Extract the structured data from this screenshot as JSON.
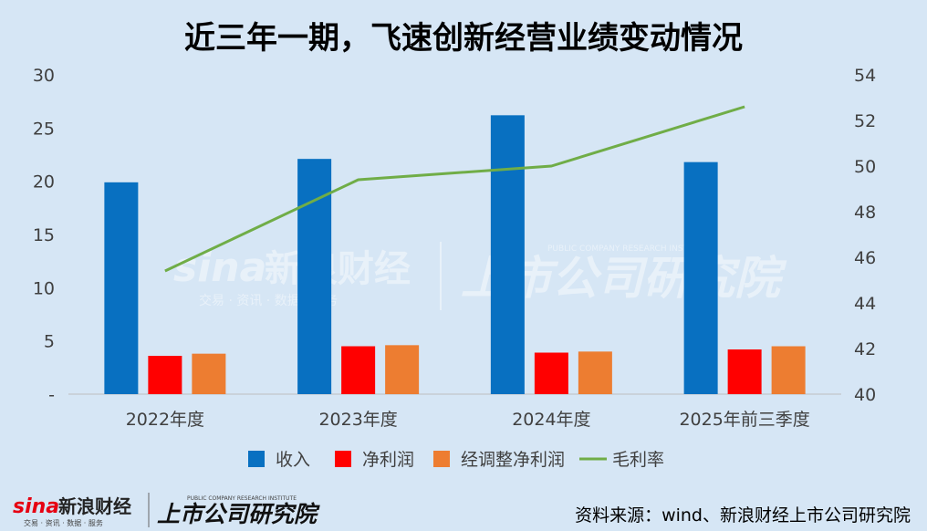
{
  "title": "近三年一期，飞速创新经营业绩变动情况",
  "source": "资料来源：wind、新浪财经上市公司研究院",
  "brand": {
    "sina_latin": "sina",
    "sina_cn": "新浪财经",
    "sina_sub": "交易 · 资讯 · 数据 · 服务",
    "institute_cn": "上市公司研究院",
    "institute_en": "PUBLIC COMPANY RESEARCH INSTITUTE"
  },
  "colors": {
    "background": "#d6e6f5",
    "revenue": "#0870c1",
    "net_profit": "#ff0000",
    "adj_net_profit": "#ed7d31",
    "gross_margin": "#70ad47"
  },
  "chart_data": {
    "type": "bar",
    "title": "近三年一期，飞速创新经营业绩变动情况",
    "categories": [
      "2022年度",
      "2023年度",
      "2024年度",
      "2025年前三季度"
    ],
    "series": [
      {
        "name": "收入",
        "axis": "left",
        "kind": "bar",
        "values": [
          19.9,
          22.1,
          26.2,
          21.8
        ]
      },
      {
        "name": "净利润",
        "axis": "left",
        "kind": "bar",
        "values": [
          3.6,
          4.5,
          3.9,
          4.2
        ]
      },
      {
        "name": "经调整净利润",
        "axis": "left",
        "kind": "bar",
        "values": [
          3.8,
          4.6,
          4.0,
          4.5
        ]
      },
      {
        "name": "毛利率",
        "axis": "right",
        "kind": "line",
        "values": [
          45.4,
          49.4,
          50.0,
          52.6
        ]
      }
    ],
    "ylim_left": [
      0,
      30
    ],
    "yticks_left": [
      "-",
      "5",
      "10",
      "15",
      "20",
      "25",
      "30"
    ],
    "ylim_right": [
      40,
      54
    ],
    "yticks_right": [
      "40",
      "42",
      "44",
      "46",
      "48",
      "50",
      "52",
      "54"
    ],
    "legend_position": "bottom"
  }
}
